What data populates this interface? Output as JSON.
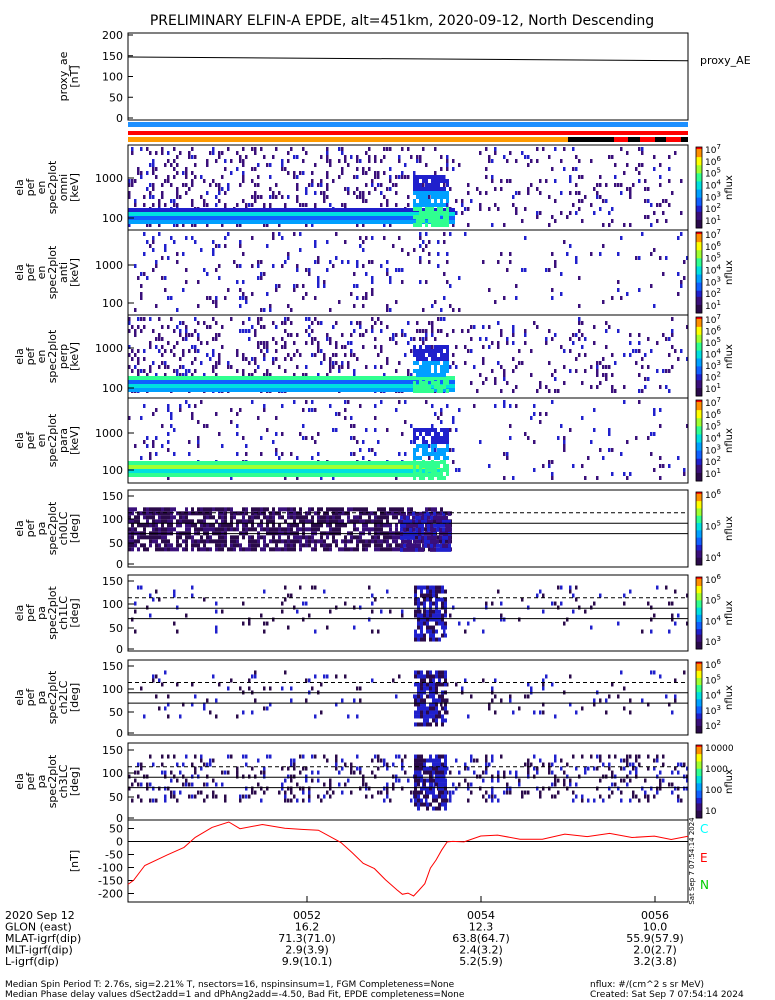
{
  "title": "PRELIMINARY ELFIN-A EPDE, alt=451km, 2020-09-12, North Descending",
  "chart_data": [
    {
      "type": "line",
      "ylabel": [
        "proxy_ae",
        "[nT]"
      ],
      "legend": "proxy_AE",
      "ylim": [
        0,
        200
      ],
      "yticks": [
        "200",
        "150",
        "100",
        "50",
        "0"
      ],
      "series": [
        {
          "name": "proxy_AE",
          "x": [
            0,
            1
          ],
          "values": [
            147,
            138
          ]
        }
      ]
    },
    {
      "type": "heatmap",
      "ylabel": [
        "ela",
        "pef",
        "en",
        "spec2plot",
        "omni",
        "[keV]"
      ],
      "yticks": [
        "1000",
        "100"
      ],
      "colorbar": {
        "label": "nflux",
        "ticks": [
          "10^7",
          "10^6",
          "10^5",
          "10^4",
          "10^3",
          "10^2",
          "10^1"
        ]
      }
    },
    {
      "type": "heatmap",
      "ylabel": [
        "ela",
        "pef",
        "en",
        "spec2plot",
        "anti",
        "[keV]"
      ],
      "yticks": [
        "1000",
        "100"
      ],
      "colorbar": {
        "label": "nflux",
        "ticks": [
          "10^7",
          "10^6",
          "10^5",
          "10^4",
          "10^3",
          "10^2",
          "10^1"
        ]
      }
    },
    {
      "type": "heatmap",
      "ylabel": [
        "ela",
        "pef",
        "en",
        "spec2plot",
        "perp",
        "[keV]"
      ],
      "yticks": [
        "1000",
        "100"
      ],
      "colorbar": {
        "label": "nflux",
        "ticks": [
          "10^7",
          "10^6",
          "10^5",
          "10^4",
          "10^3",
          "10^2",
          "10^1"
        ]
      }
    },
    {
      "type": "heatmap",
      "ylabel": [
        "ela",
        "pef",
        "en",
        "spec2plot",
        "para",
        "[keV]"
      ],
      "yticks": [
        "1000",
        "100"
      ],
      "colorbar": {
        "label": "nflux",
        "ticks": [
          "10^7",
          "10^6",
          "10^5",
          "10^4",
          "10^3",
          "10^2",
          "10^1"
        ]
      }
    },
    {
      "type": "heatmap",
      "ylabel": [
        "ela",
        "pef",
        "pa",
        "spec2plot",
        "ch0LC",
        "[deg]"
      ],
      "yticks": [
        "150",
        "100",
        "50",
        "0"
      ],
      "colorbar": {
        "label": "nflux",
        "ticks": [
          "10^6",
          "10^5",
          "10^4"
        ]
      }
    },
    {
      "type": "heatmap",
      "ylabel": [
        "ela",
        "pef",
        "pa",
        "spec2plot",
        "ch1LC",
        "[deg]"
      ],
      "yticks": [
        "150",
        "100",
        "50",
        "0"
      ],
      "colorbar": {
        "label": "nflux",
        "ticks": [
          "10^6",
          "10^5",
          "10^4",
          "10^3"
        ]
      }
    },
    {
      "type": "heatmap",
      "ylabel": [
        "ela",
        "pef",
        "pa",
        "spec2plot",
        "ch2LC",
        "[deg]"
      ],
      "yticks": [
        "150",
        "100",
        "50",
        "0"
      ],
      "colorbar": {
        "label": "nflux",
        "ticks": [
          "10^6",
          "10^5",
          "10^4",
          "10^3",
          "10^2"
        ]
      }
    },
    {
      "type": "heatmap",
      "ylabel": [
        "ela",
        "pef",
        "pa",
        "spec2plot",
        "ch3LC",
        "[deg]"
      ],
      "yticks": [
        "150",
        "100",
        "50",
        "0"
      ],
      "colorbar": {
        "label": "nflux",
        "ticks": [
          "10000",
          "1000",
          "100",
          "10"
        ]
      }
    },
    {
      "type": "line",
      "ylabel": [
        "[nT]"
      ],
      "ylim": [
        -225,
        75
      ],
      "yticks": [
        "50",
        "0",
        "-50",
        "-100",
        "-150",
        "-200"
      ],
      "legend": [
        "C",
        "E",
        "N"
      ],
      "series": [
        {
          "name": "C",
          "x": [],
          "values": []
        },
        {
          "name": "E",
          "x": [
            0,
            0.01,
            0.03,
            0.07,
            0.1,
            0.12,
            0.15,
            0.18,
            0.2,
            0.24,
            0.28,
            0.31,
            0.34,
            0.38,
            0.4,
            0.42,
            0.44,
            0.46,
            0.48,
            0.49,
            0.5,
            0.51,
            0.52,
            0.53,
            0.54,
            0.55,
            0.56,
            0.57,
            0.58,
            0.6,
            0.63,
            0.66,
            0.7,
            0.74,
            0.78,
            0.82,
            0.86,
            0.9,
            0.94,
            0.97,
            1.0
          ],
          "values": [
            -165,
            -160,
            -90,
            -55,
            -20,
            20,
            45,
            65,
            60,
            63,
            55,
            55,
            40,
            -5,
            -50,
            -80,
            -115,
            -150,
            -185,
            -195,
            -200,
            -200,
            -185,
            -155,
            -110,
            -65,
            -30,
            -10,
            -5,
            5,
            10,
            15,
            20,
            15,
            20,
            25,
            20,
            20,
            15,
            15,
            20
          ]
        },
        {
          "name": "N",
          "x": [],
          "values": []
        }
      ]
    }
  ],
  "colors": {
    "C": "#00ffff",
    "E": "#ff0000",
    "N": "#00cc00"
  },
  "xaxis": {
    "ticks": [
      "0052",
      "0054",
      "0056"
    ],
    "rows": [
      {
        "label": "2020 Sep 12",
        "values": [
          "0052",
          "0054",
          "0056"
        ]
      },
      {
        "label": "GLON (east)",
        "values": [
          "16.2",
          "12.3",
          "10.0"
        ]
      },
      {
        "label": "MLAT-igrf(dip)",
        "values": [
          "71.3(71.0)",
          "63.8(64.7)",
          "55.9(57.9)"
        ]
      },
      {
        "label": "MLT-igrf(dip)",
        "values": [
          "2.9(3.9)",
          "2.4(3.2)",
          "2.0(2.7)"
        ]
      },
      {
        "label": "L-igrf(dip)",
        "values": [
          "9.9(10.1)",
          "5.2(5.9)",
          "3.2(3.8)"
        ]
      }
    ]
  },
  "footer": {
    "line1": "Median Spin Period T: 2.76s, sig=2.21% T, nsectors=16, nspinsinsum=1, FGM Completeness=None",
    "line2": "Median Phase delay values dSect2add=1 and dPhAng2add=-4.50, Bad Fit, EPDE completeness=None",
    "right1": "nflux: #/(cm^2 s sr MeV)",
    "right2": "Created: Sat Sep  7 07:54:14 2024"
  },
  "side_stamp": "Sat Sep  7 07:54:14 2024"
}
